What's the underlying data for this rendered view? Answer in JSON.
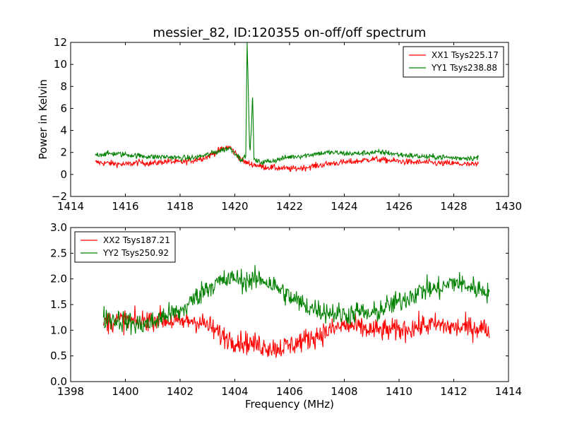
{
  "chart_data": [
    {
      "type": "line",
      "title": "messier_82, ID:120355 on-off/off spectrum",
      "xlabel": "",
      "ylabel": "Power in Kelvin",
      "xlim": [
        1414,
        1430
      ],
      "ylim": [
        -2,
        12
      ],
      "xticks": [
        1414,
        1416,
        1418,
        1420,
        1422,
        1424,
        1426,
        1428,
        1430
      ],
      "yticks": [
        -2,
        0,
        2,
        4,
        6,
        8,
        10,
        12
      ],
      "legend_position": "top-right",
      "series": [
        {
          "name": "XX1 Tsys225.17",
          "color": "#ff0000",
          "x": [
            1414.9,
            1415.5,
            1416.0,
            1416.5,
            1417.0,
            1417.5,
            1418.0,
            1418.5,
            1419.0,
            1419.5,
            1419.8,
            1420.0,
            1420.3,
            1420.5,
            1420.7,
            1421.0,
            1421.5,
            1422.0,
            1422.5,
            1423.0,
            1423.5,
            1424.0,
            1424.5,
            1425.0,
            1425.5,
            1426.0,
            1426.5,
            1427.0,
            1427.5,
            1428.0,
            1428.5,
            1428.9
          ],
          "y": [
            1.1,
            1.0,
            0.9,
            1.1,
            1.0,
            1.2,
            1.1,
            1.3,
            1.6,
            2.3,
            2.5,
            2.0,
            1.2,
            1.0,
            0.9,
            0.7,
            0.6,
            0.5,
            0.6,
            0.8,
            1.0,
            1.1,
            1.2,
            1.4,
            1.3,
            1.2,
            1.1,
            1.1,
            1.0,
            1.0,
            0.9,
            0.9
          ],
          "spread": 0.45
        },
        {
          "name": "YY1 Tsys238.88",
          "color": "#008000",
          "x": [
            1414.9,
            1415.5,
            1416.0,
            1416.5,
            1417.0,
            1417.5,
            1418.0,
            1418.5,
            1419.0,
            1419.5,
            1419.8,
            1420.0,
            1420.2,
            1420.4,
            1420.45,
            1420.55,
            1420.65,
            1420.7,
            1420.8,
            1421.0,
            1421.5,
            1422.0,
            1422.5,
            1423.0,
            1423.5,
            1424.0,
            1424.5,
            1425.0,
            1425.5,
            1426.0,
            1426.5,
            1427.0,
            1427.5,
            1428.0,
            1428.5,
            1428.9
          ],
          "y": [
            1.8,
            1.9,
            1.8,
            1.7,
            1.6,
            1.6,
            1.5,
            1.5,
            1.8,
            2.2,
            2.4,
            2.0,
            1.4,
            1.6,
            12.0,
            1.5,
            7.0,
            1.4,
            1.2,
            1.1,
            1.3,
            1.6,
            1.7,
            1.9,
            2.0,
            1.9,
            1.9,
            2.0,
            2.0,
            1.8,
            1.7,
            1.6,
            1.6,
            1.5,
            1.5,
            1.5
          ],
          "spread": 0.4
        }
      ]
    },
    {
      "type": "line",
      "title": "",
      "xlabel": "Frequency (MHz)",
      "ylabel": "",
      "xlim": [
        1398,
        1414
      ],
      "ylim": [
        0.0,
        3.0
      ],
      "xticks": [
        1398,
        1400,
        1402,
        1404,
        1406,
        1408,
        1410,
        1412,
        1414
      ],
      "yticks": [
        0.0,
        0.5,
        1.0,
        1.5,
        2.0,
        2.5,
        3.0
      ],
      "legend_position": "top-left",
      "series": [
        {
          "name": "XX2 Tsys187.21",
          "color": "#ff0000",
          "x": [
            1399.2,
            1399.8,
            1400.5,
            1401.0,
            1401.5,
            1402.0,
            1402.5,
            1403.0,
            1403.5,
            1404.0,
            1404.5,
            1405.0,
            1405.5,
            1406.0,
            1406.5,
            1407.0,
            1407.5,
            1408.0,
            1408.5,
            1409.0,
            1409.5,
            1410.0,
            1410.5,
            1411.0,
            1411.5,
            1412.0,
            1412.5,
            1413.0,
            1413.3
          ],
          "y": [
            1.15,
            1.2,
            1.15,
            1.25,
            1.2,
            1.15,
            1.2,
            1.1,
            0.9,
            0.8,
            0.75,
            0.7,
            0.65,
            0.7,
            0.8,
            0.9,
            1.0,
            1.1,
            1.05,
            1.0,
            1.0,
            1.0,
            1.05,
            1.1,
            1.1,
            1.05,
            1.05,
            1.05,
            1.0
          ],
          "spread": 0.35
        },
        {
          "name": "YY2 Tsys250.92",
          "color": "#008000",
          "x": [
            1399.2,
            1399.8,
            1400.5,
            1401.0,
            1401.5,
            1402.0,
            1402.5,
            1403.0,
            1403.5,
            1404.0,
            1404.5,
            1405.0,
            1405.5,
            1406.0,
            1406.5,
            1407.0,
            1407.5,
            1408.0,
            1408.5,
            1409.0,
            1409.5,
            1410.0,
            1410.5,
            1411.0,
            1411.5,
            1412.0,
            1412.5,
            1413.0,
            1413.3
          ],
          "y": [
            1.25,
            1.2,
            1.1,
            1.15,
            1.3,
            1.35,
            1.6,
            1.85,
            1.95,
            2.0,
            1.95,
            2.0,
            1.85,
            1.65,
            1.5,
            1.4,
            1.35,
            1.3,
            1.35,
            1.3,
            1.45,
            1.55,
            1.7,
            1.8,
            1.8,
            1.95,
            1.85,
            1.8,
            1.75
          ],
          "spread": 0.35
        }
      ]
    }
  ]
}
